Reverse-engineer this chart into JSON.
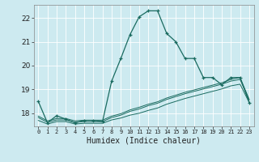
{
  "xlabel": "Humidex (Indice chaleur)",
  "background_color": "#cdeaf0",
  "grid_color": "#ffffff",
  "line_color": "#1a6b60",
  "xlim": [
    -0.5,
    23.5
  ],
  "ylim": [
    17.45,
    22.55
  ],
  "xticks": [
    0,
    1,
    2,
    3,
    4,
    5,
    6,
    7,
    8,
    9,
    10,
    11,
    12,
    13,
    14,
    15,
    16,
    17,
    18,
    19,
    20,
    21,
    22,
    23
  ],
  "yticks": [
    18,
    19,
    20,
    21,
    22
  ],
  "main_x": [
    0,
    1,
    2,
    3,
    4,
    5,
    6,
    7,
    8,
    9,
    10,
    11,
    12,
    13,
    14,
    15,
    16,
    17,
    18,
    19,
    20,
    21,
    22,
    23
  ],
  "main_y": [
    18.5,
    17.6,
    17.9,
    17.75,
    17.6,
    17.7,
    17.7,
    17.65,
    19.35,
    20.3,
    21.3,
    22.05,
    22.3,
    22.3,
    21.35,
    21.0,
    20.3,
    20.3,
    19.5,
    19.5,
    19.2,
    19.5,
    19.5,
    18.45
  ],
  "line2_x": [
    0,
    1,
    2,
    3,
    4,
    5,
    6,
    7,
    8,
    9,
    10,
    11,
    12,
    13,
    14,
    15,
    16,
    17,
    18,
    19,
    20,
    21,
    22,
    23
  ],
  "line2_y": [
    17.7,
    17.55,
    17.65,
    17.65,
    17.55,
    17.58,
    17.58,
    17.58,
    17.72,
    17.8,
    17.92,
    18.0,
    18.12,
    18.22,
    18.38,
    18.5,
    18.62,
    18.72,
    18.82,
    18.92,
    19.02,
    19.15,
    19.22,
    18.45
  ],
  "line3_x": [
    0,
    1,
    2,
    3,
    4,
    5,
    6,
    7,
    8,
    9,
    10,
    11,
    12,
    13,
    14,
    15,
    16,
    17,
    18,
    19,
    20,
    21,
    22,
    23
  ],
  "line3_y": [
    17.82,
    17.62,
    17.72,
    17.72,
    17.62,
    17.65,
    17.65,
    17.65,
    17.82,
    17.92,
    18.08,
    18.18,
    18.32,
    18.42,
    18.58,
    18.7,
    18.82,
    18.92,
    19.02,
    19.12,
    19.22,
    19.35,
    19.42,
    18.55
  ],
  "line4_x": [
    0,
    1,
    2,
    3,
    4,
    5,
    6,
    7,
    8,
    9,
    10,
    11,
    12,
    13,
    14,
    15,
    16,
    17,
    18,
    19,
    20,
    21,
    22,
    23
  ],
  "line4_y": [
    17.88,
    17.68,
    17.78,
    17.78,
    17.68,
    17.71,
    17.71,
    17.71,
    17.88,
    17.98,
    18.14,
    18.25,
    18.38,
    18.48,
    18.64,
    18.76,
    18.88,
    18.98,
    19.08,
    19.18,
    19.28,
    19.42,
    19.5,
    18.58
  ]
}
